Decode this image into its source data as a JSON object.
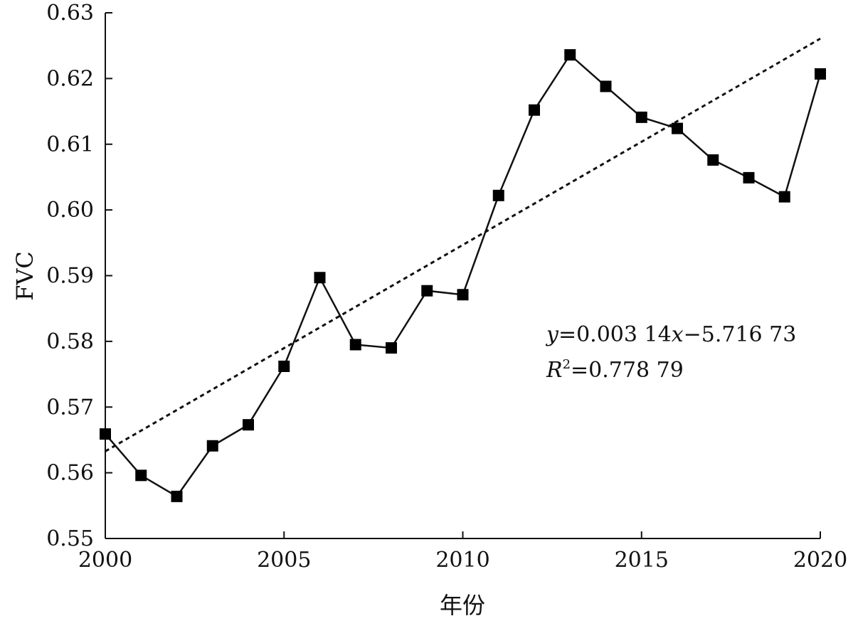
{
  "chart_data": {
    "type": "line",
    "xlabel": "年份",
    "ylabel": "FVC",
    "xlim": [
      2000,
      2020
    ],
    "ylim": [
      0.55,
      0.63
    ],
    "x_ticks": [
      "2000",
      "2005",
      "2010",
      "2015",
      "2020"
    ],
    "y_ticks": [
      "0.55",
      "0.56",
      "0.57",
      "0.58",
      "0.59",
      "0.60",
      "0.61",
      "0.62",
      "0.63"
    ],
    "grid": false,
    "series": [
      {
        "marker": "square",
        "line_style": "solid",
        "x": [
          2000,
          2001,
          2002,
          2003,
          2004,
          2005,
          2006,
          2007,
          2008,
          2009,
          2010,
          2011,
          2012,
          2013,
          2014,
          2015,
          2016,
          2017,
          2018,
          2019,
          2020
        ],
        "values": [
          0.5659,
          0.5596,
          0.5564,
          0.5641,
          0.5673,
          0.5762,
          0.5897,
          0.5795,
          0.579,
          0.5877,
          0.5871,
          0.6022,
          0.6152,
          0.6236,
          0.6188,
          0.6141,
          0.6124,
          0.6076,
          0.6049,
          0.602,
          0.6207
        ]
      }
    ],
    "trendline": {
      "line_style": "dotted",
      "slope": 0.00314,
      "intercept": -5.71673,
      "equation_parts": {
        "y": "y",
        "equals_fit": "=0.003 14",
        "x": "x",
        "rest": "−5.716 73"
      },
      "r2_parts": {
        "R": "R",
        "sup": "2",
        "rest": "=0.778 79"
      }
    }
  }
}
